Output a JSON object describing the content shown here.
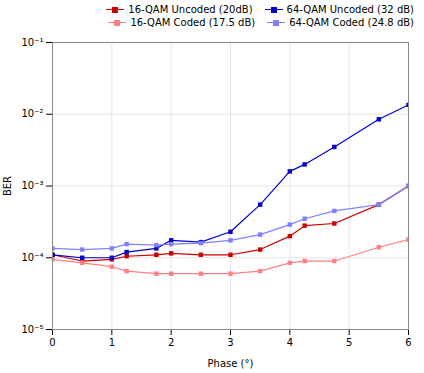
{
  "chart_data": {
    "type": "line",
    "xlabel": "Phase (°)",
    "ylabel": "BER",
    "x": [
      0,
      0.5,
      1.0,
      1.25,
      1.75,
      2.0,
      2.5,
      3.0,
      3.5,
      4.0,
      4.25,
      4.75,
      5.5,
      6.0
    ],
    "series": [
      {
        "name": "16-QAM Uncoded (20dB)",
        "color": "#cc0000",
        "marker": "square",
        "values": [
          0.00011,
          9e-05,
          9.5e-05,
          0.000105,
          0.00011,
          0.000115,
          0.00011,
          0.00011,
          0.00013,
          0.0002,
          0.00028,
          0.0003,
          0.00055,
          0.001
        ]
      },
      {
        "name": "64-QAM Uncoded (32 dB)",
        "color": "#0000cc",
        "marker": "square",
        "values": [
          0.00011,
          0.0001,
          0.0001,
          0.00012,
          0.000135,
          0.000175,
          0.000165,
          0.00023,
          0.00055,
          0.0016,
          0.002,
          0.0035,
          0.0085,
          0.0135
        ]
      },
      {
        "name": "16-QAM Coded (17.5 dB)",
        "color": "#ff8080",
        "marker": "square",
        "values": [
          9.5e-05,
          8.5e-05,
          7.5e-05,
          6.5e-05,
          6e-05,
          6e-05,
          6e-05,
          6e-05,
          6.5e-05,
          8.5e-05,
          9e-05,
          9e-05,
          0.00014,
          0.00018
        ]
      },
      {
        "name": "64-QAM Coded (24.8 dB)",
        "color": "#8080ff",
        "marker": "square",
        "values": [
          0.000135,
          0.00013,
          0.000135,
          0.000155,
          0.00015,
          0.000155,
          0.00016,
          0.000175,
          0.00021,
          0.00029,
          0.00035,
          0.00045,
          0.00055,
          0.001
        ]
      }
    ],
    "xlim": [
      0,
      6
    ],
    "xticks": [
      0,
      1,
      2,
      3,
      4,
      5,
      6
    ],
    "ylim": [
      1e-05,
      0.1
    ],
    "yticks": [
      {
        "value": 1e-05,
        "label": "10⁻⁵"
      },
      {
        "value": 0.0001,
        "label": "10⁻⁴"
      },
      {
        "value": 0.001,
        "label": "10⁻³"
      },
      {
        "value": 0.01,
        "label": "10⁻²"
      },
      {
        "value": 0.1,
        "label": "10⁻¹"
      }
    ],
    "log": "y",
    "grid": true,
    "legend": "upper right"
  }
}
